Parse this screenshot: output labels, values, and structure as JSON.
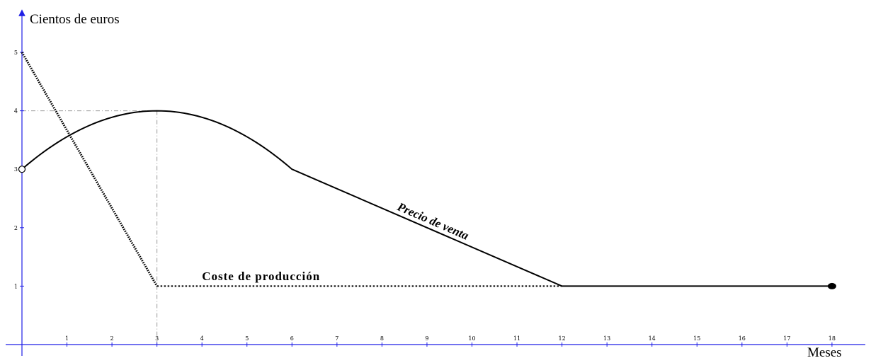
{
  "chart_data": {
    "type": "line",
    "ylabel": "Cientos de euros",
    "xlabel": "Meses",
    "xlim": [
      0,
      18.5
    ],
    "ylim": [
      -0.1,
      5.5
    ],
    "x_ticks": [
      "1",
      "2",
      "3",
      "4",
      "5",
      "6",
      "7",
      "8",
      "9",
      "10",
      "11",
      "12",
      "13",
      "14",
      "15",
      "16",
      "17",
      "18"
    ],
    "y_ticks": [
      "1",
      "2",
      "3",
      "4",
      "5"
    ],
    "grid": false,
    "colors": {
      "axis": "#1e1ee6",
      "curve": "#000000",
      "guide": "#999999"
    },
    "series": [
      {
        "name": "Precio de venta",
        "segments": [
          {
            "kind": "parabola",
            "formula": "y = -x^2/9 + 2x/3 + 3",
            "x_range": [
              0,
              6
            ]
          },
          {
            "kind": "linear",
            "points": [
              [
                6,
                3
              ],
              [
                12,
                1
              ]
            ]
          },
          {
            "kind": "linear",
            "points": [
              [
                12,
                1
              ],
              [
                18,
                1
              ]
            ]
          }
        ],
        "start_marker": {
          "x": 0,
          "y": 3,
          "style": "open"
        },
        "end_marker": {
          "x": 18,
          "y": 1,
          "style": "filled"
        }
      },
      {
        "name": "Coste de producción",
        "style": "dotted",
        "points": [
          [
            0,
            5
          ],
          [
            3,
            1
          ],
          [
            12,
            1
          ]
        ]
      }
    ],
    "guides": [
      {
        "from": [
          0,
          4
        ],
        "to": [
          3,
          4
        ]
      },
      {
        "from": [
          3,
          4
        ],
        "to": [
          3,
          0
        ]
      }
    ],
    "annotations": [
      {
        "text": "Coste de producción",
        "x": 4,
        "y": 1.1
      },
      {
        "text": "Precio de venta",
        "x": 9.1,
        "y": 2.05
      }
    ]
  }
}
